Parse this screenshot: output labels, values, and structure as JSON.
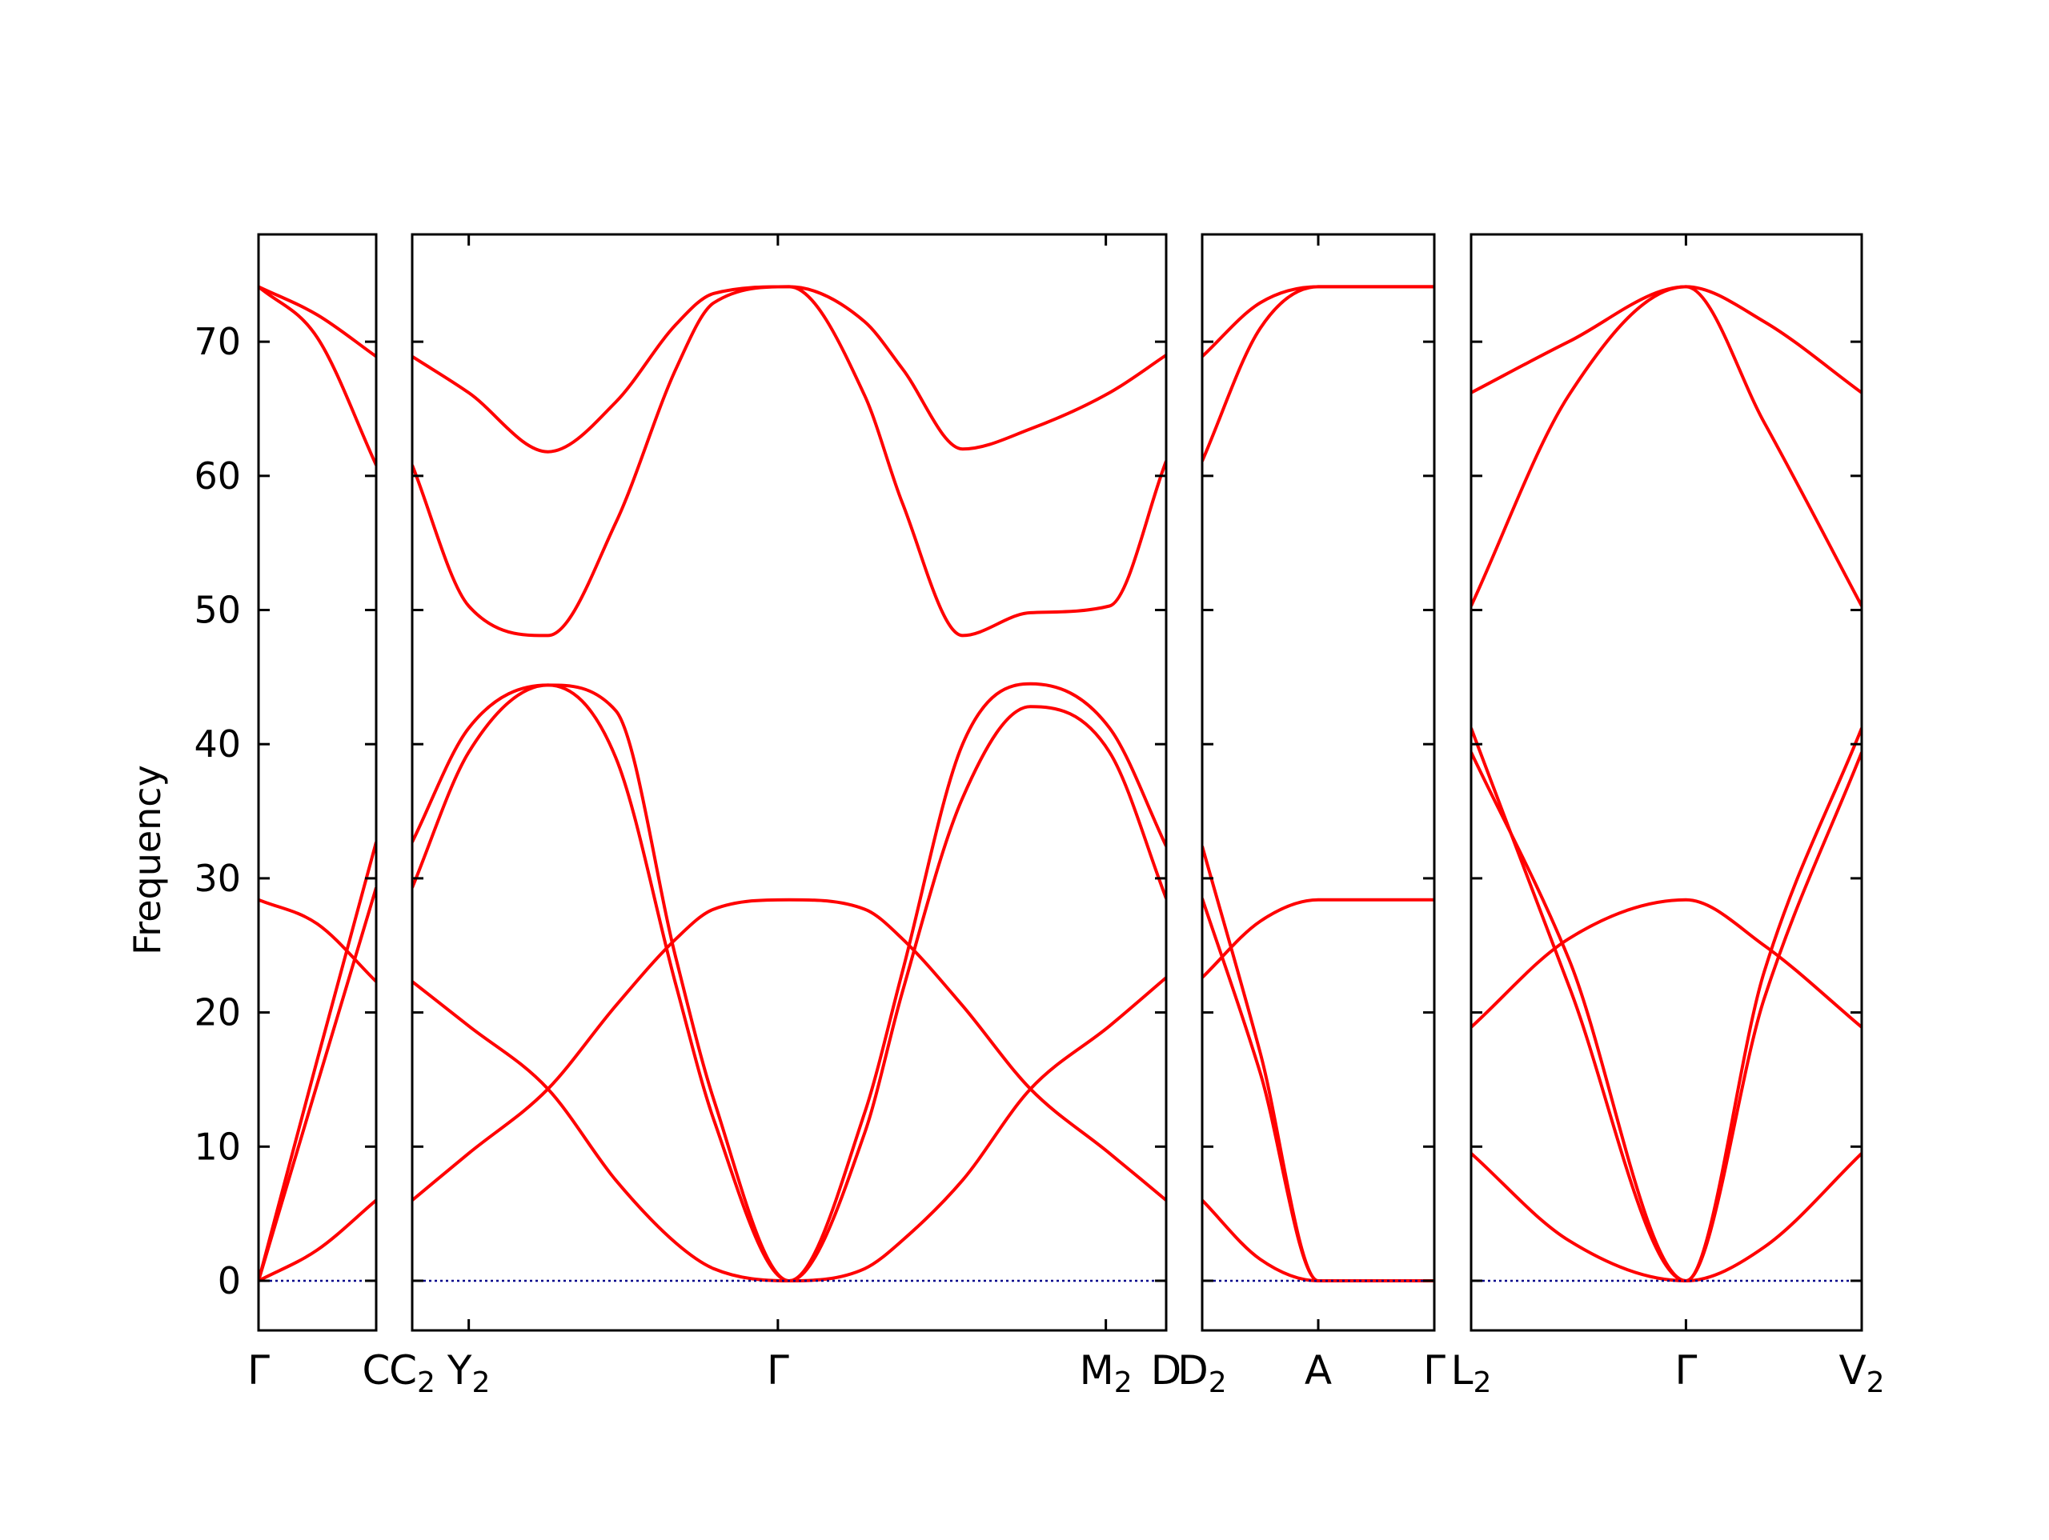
{
  "chart_data": {
    "type": "line",
    "title": "",
    "ylabel": "Frequency",
    "xlabel": "",
    "ylim": [
      -3.7,
      78
    ],
    "yticks": [
      0,
      10,
      20,
      30,
      40,
      50,
      60,
      70
    ],
    "grid": false,
    "legend": "none",
    "colors": {
      "bands": "#ff0000",
      "zero_line": "#00008b",
      "axes": "#000000"
    },
    "segment_labels": [
      {
        "left": {
          "text": "Γ",
          "sub": ""
        },
        "right": {
          "text": "C",
          "sub": ""
        }
      },
      {
        "left": {
          "text": "C",
          "sub": "2"
        },
        "right": {
          "text": "D",
          "sub": ""
        }
      },
      {
        "left": {
          "text": "D",
          "sub": "2"
        },
        "right": {
          "text": "Γ",
          "sub": ""
        }
      },
      {
        "left": {
          "text": "L",
          "sub": "2"
        },
        "right": {
          "text": "V",
          "sub": "2"
        }
      }
    ],
    "panels": [
      {
        "x": [
          0,
          0.5,
          1.0
        ],
        "ticks": [
          {
            "x": 0
          },
          {
            "x": 1.0
          }
        ],
        "series": [
          {
            "values": [
              74.1,
              72.0,
              68.9
            ]
          },
          {
            "values": [
              74.1,
              70.3,
              60.8
            ]
          },
          {
            "values": [
              0,
              16.5,
              32.7
            ]
          },
          {
            "values": [
              0,
              14.7,
              29.3
            ]
          },
          {
            "values": [
              28.4,
              26.6,
              22.3
            ]
          },
          {
            "values": [
              0,
              2.3,
              6.0
            ]
          }
        ]
      },
      {
        "x": [
          0,
          0.075,
          0.18,
          0.27,
          0.35,
          0.4,
          0.5,
          0.6,
          0.65,
          0.73,
          0.82,
          0.925,
          1.0
        ],
        "ticks": [
          {
            "x": 0.075,
            "label": {
              "text": "Y",
              "sub": "2"
            }
          },
          {
            "x": 0.485,
            "label": {
              "text": "Γ",
              "sub": ""
            }
          },
          {
            "x": 0.92,
            "label": {
              "text": "M",
              "sub": "2"
            }
          }
        ],
        "series": [
          {
            "values": [
              68.9,
              66.2,
              61.8,
              65.5,
              71.3,
              73.6,
              74.1,
              71.5,
              68.0,
              62.0,
              63.5,
              66.2,
              69.0
            ]
          },
          {
            "values": [
              60.8,
              50.3,
              48.1,
              56.5,
              68.0,
              72.9,
              74.1,
              66.0,
              58.0,
              48.1,
              49.8,
              50.3,
              61.1
            ]
          },
          {
            "values": [
              32.7,
              41.2,
              44.4,
              39.0,
              22.0,
              12.0,
              0,
              12.5,
              23.0,
              40.0,
              44.5,
              41.2,
              32.4
            ]
          },
          {
            "values": [
              29.3,
              39.4,
              44.4,
              42.5,
              24.0,
              13.5,
              0,
              11.0,
              21.5,
              36.0,
              42.8,
              39.4,
              28.5
            ]
          },
          {
            "values": [
              22.3,
              19.0,
              14.3,
              7.5,
              2.8,
              0.9,
              0,
              0.9,
              3.0,
              7.5,
              14.3,
              19.0,
              22.6
            ]
          },
          {
            "values": [
              6.0,
              9.5,
              14.3,
              20.5,
              25.5,
              27.7,
              28.4,
              27.7,
              25.5,
              20.5,
              14.3,
              9.5,
              6.0
            ]
          },
          {
            "values": [
              0,
              0,
              0,
              0,
              0,
              0,
              0,
              0,
              0,
              0,
              0,
              0,
              0
            ],
            "style": "zero"
          }
        ]
      },
      {
        "x": [
          0,
          0.25,
          0.5,
          1.0
        ],
        "ticks": [
          {
            "x": 0.5,
            "label": {
              "text": "A",
              "sub": ""
            }
          }
        ],
        "series": [
          {
            "values": [
              68.9,
              72.9,
              74.1,
              74.1
            ]
          },
          {
            "values": [
              61.1,
              71.0,
              74.1,
              74.1
            ]
          },
          {
            "values": [
              32.4,
              17.0,
              0,
              0
            ]
          },
          {
            "values": [
              28.5,
              15.5,
              0,
              0
            ]
          },
          {
            "values": [
              22.6,
              26.8,
              28.4,
              28.4
            ]
          },
          {
            "values": [
              6.0,
              1.6,
              0,
              0
            ]
          }
        ]
      },
      {
        "x": [
          0,
          0.25,
          0.55,
          0.75,
          1.0
        ],
        "ticks": [
          {
            "x": 0.55,
            "label": {
              "text": "Γ",
              "sub": ""
            }
          }
        ],
        "series": [
          {
            "values": [
              66.2,
              70.0,
              74.1,
              71.5,
              66.2
            ]
          },
          {
            "values": [
              50.3,
              66.0,
              74.1,
              64.0,
              50.3
            ]
          },
          {
            "values": [
              41.2,
              22.0,
              0,
              23.0,
              41.2
            ]
          },
          {
            "values": [
              39.4,
              24.0,
              0,
              21.0,
              39.4
            ]
          },
          {
            "values": [
              18.9,
              25.5,
              28.4,
              25.0,
              18.9
            ]
          },
          {
            "values": [
              9.5,
              3.0,
              0,
              2.5,
              9.5
            ]
          }
        ]
      }
    ]
  }
}
